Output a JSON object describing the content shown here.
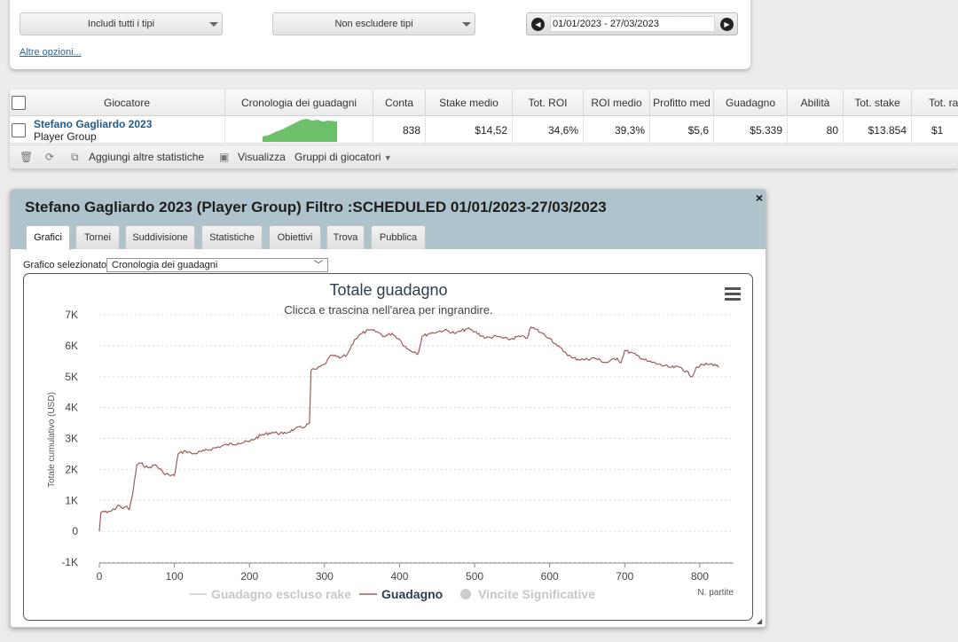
{
  "filters": {
    "include_types": "Includi tutti i tipi",
    "exclude_types": "Non escludere tipi",
    "date_range": "01/01/2023 - 27/03/2023",
    "more_options": "Altre opzioni..."
  },
  "table": {
    "headers": [
      "Giocatore",
      "Cronologia dei guadagni",
      "Conta",
      "Stake medio",
      "Tot. ROI",
      "ROI medio",
      "Profitto med",
      "Guadagno",
      "Abilità",
      "Tot. stake",
      "Tot. ra"
    ],
    "row": {
      "player_name": "Stefano Gagliardo 2023",
      "player_type": "Player Group",
      "count": "838",
      "avg_stake": "$14,52",
      "tot_roi": "34,6%",
      "avg_roi": "39,3%",
      "avg_profit": "$5,6",
      "profit": "$5.339",
      "ability": "80",
      "tot_stake": "$13.854",
      "tot_ra": "$1"
    },
    "toolbar": {
      "add_stats": "Aggiungi altre statistiche",
      "view": "Visualizza",
      "player_groups": "Gruppi di giocatori"
    }
  },
  "dialog": {
    "title": "Stefano Gagliardo 2023 (Player Group) Filtro :SCHEDULED 01/01/2023-27/03/2023",
    "close": "×",
    "tabs": [
      "Grafici",
      "Tornei",
      "Suddivisione",
      "Statistiche",
      "Obiettivi",
      "Trova",
      "Pubblica"
    ],
    "active_tab": "Grafici",
    "chart_select_label": "Grafico selezionato",
    "chart_select_value": "Cronologia dei guadagni"
  },
  "colors": {
    "series_profit": "#a05a5a",
    "sparkline": "#6dbf6a",
    "dialog_header": "#aec3cb",
    "link": "#1f5a8c"
  },
  "chart_data": {
    "type": "line",
    "title": "Totale guadagno",
    "subtitle": "Clicca e trascina nell'area per ingrandire.",
    "xlabel": "N. partite",
    "ylabel": "Totale cumulativo (USD)",
    "xlim": [
      0,
      845
    ],
    "ylim": [
      -1000,
      7000
    ],
    "x_ticks": [
      "0",
      "100",
      "200",
      "300",
      "400",
      "500",
      "600",
      "700",
      "800"
    ],
    "y_ticks": [
      "-1K",
      "0",
      "1K",
      "2K",
      "3K",
      "4K",
      "5K",
      "6K",
      "7K"
    ],
    "legend_position": "bottom",
    "grid": true,
    "legend": [
      {
        "name": "Guadagno escluso rake",
        "visible": false
      },
      {
        "name": "Guadagno",
        "visible": true
      },
      {
        "name": "Vincite Significative",
        "visible": false
      }
    ],
    "series": [
      {
        "name": "Guadagno",
        "x": [
          0,
          2,
          5,
          10,
          15,
          20,
          25,
          30,
          35,
          40,
          45,
          50,
          55,
          65,
          75,
          85,
          95,
          100,
          105,
          115,
          125,
          140,
          155,
          170,
          185,
          200,
          215,
          230,
          245,
          260,
          275,
          280,
          282,
          290,
          300,
          310,
          320,
          330,
          340,
          350,
          360,
          370,
          380,
          390,
          400,
          410,
          420,
          425,
          430,
          440,
          450,
          460,
          475,
          490,
          500,
          515,
          530,
          545,
          560,
          570,
          575,
          580,
          590,
          600,
          610,
          620,
          630,
          645,
          660,
          675,
          690,
          695,
          700,
          715,
          730,
          745,
          760,
          775,
          790,
          795,
          800,
          810,
          820,
          825
        ],
        "y": [
          0,
          600,
          650,
          600,
          650,
          700,
          850,
          750,
          800,
          700,
          1300,
          2150,
          2200,
          2050,
          2150,
          1900,
          1800,
          1800,
          2500,
          2600,
          2500,
          2600,
          2700,
          2800,
          2850,
          2900,
          3100,
          3200,
          3150,
          3300,
          3400,
          3500,
          5200,
          5250,
          5400,
          5700,
          5600,
          5700,
          6200,
          6400,
          6500,
          6450,
          6300,
          6400,
          6200,
          5900,
          5800,
          5750,
          6300,
          6400,
          6450,
          6500,
          6400,
          6550,
          6450,
          6250,
          6300,
          6200,
          6300,
          6250,
          6600,
          6550,
          6400,
          6250,
          6000,
          5800,
          5600,
          5550,
          5600,
          5450,
          5600,
          5450,
          5850,
          5700,
          5500,
          5400,
          5300,
          5300,
          5000,
          5300,
          5350,
          5400,
          5400,
          5300
        ]
      }
    ]
  }
}
